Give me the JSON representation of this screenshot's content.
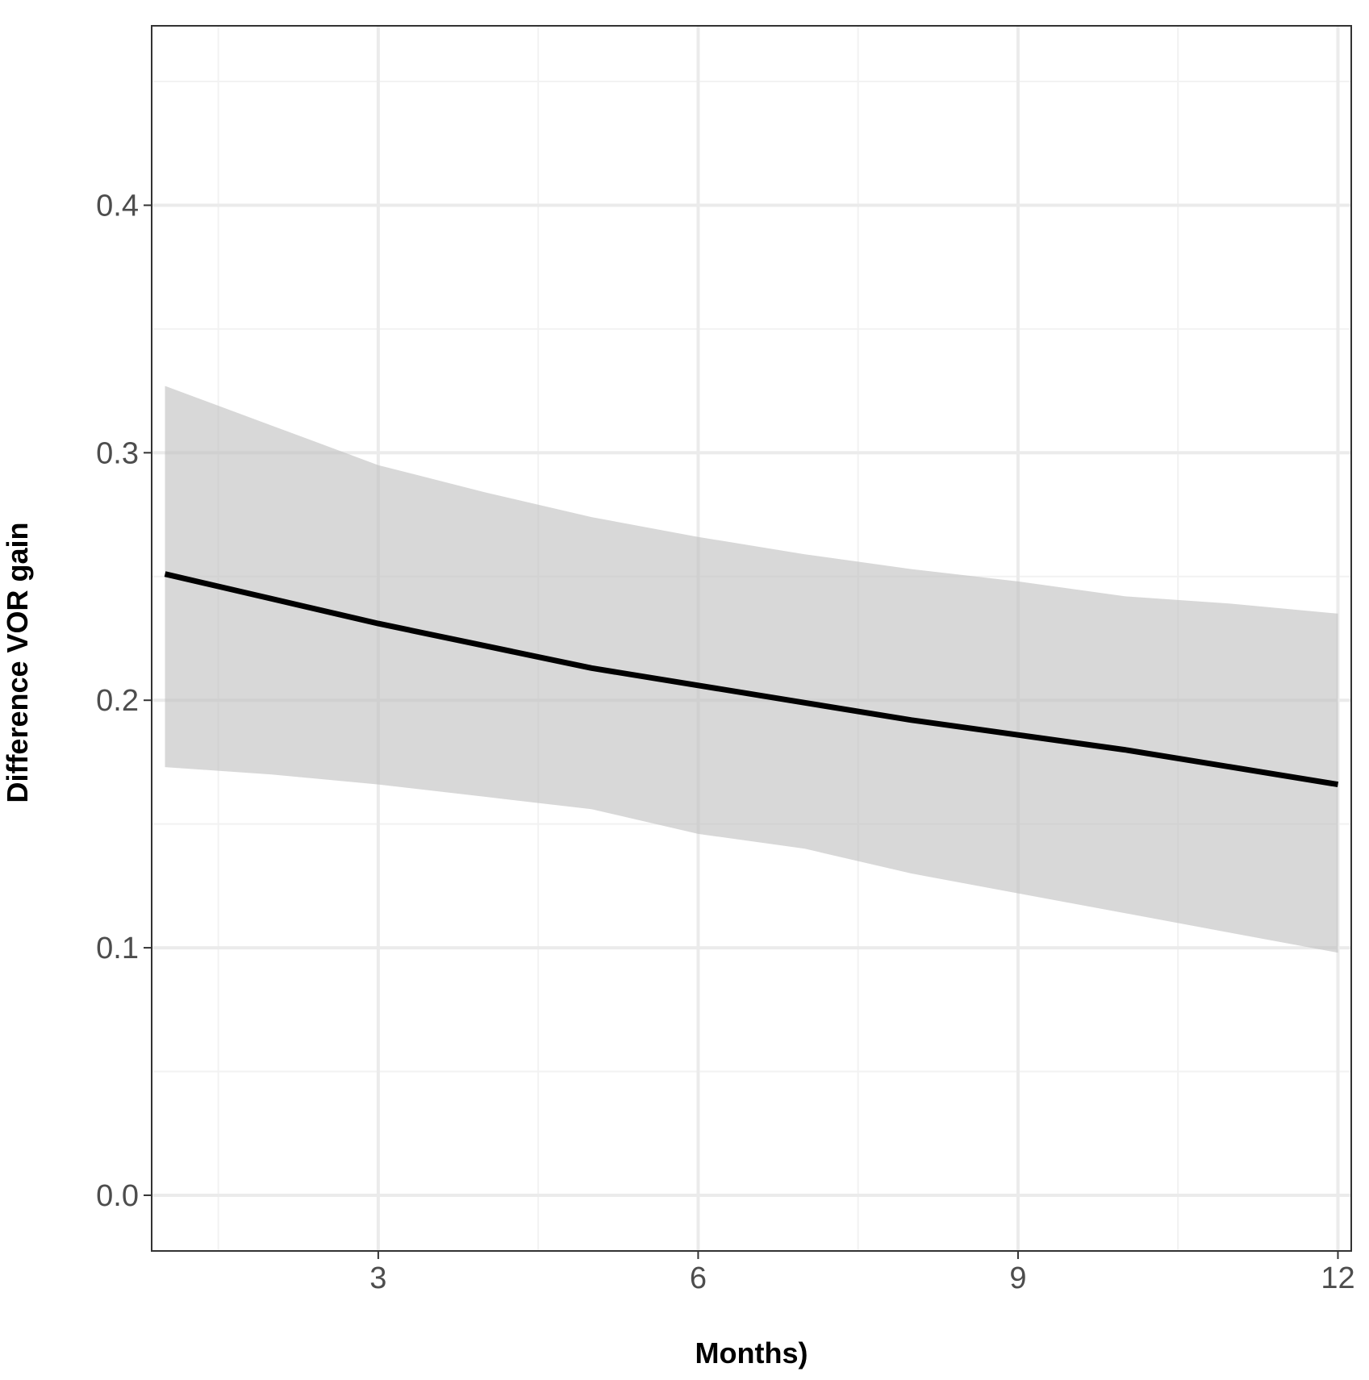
{
  "chart_data": {
    "type": "line",
    "title": "",
    "xlabel": "Months)",
    "ylabel": "Difference VOR gain",
    "xlim": [
      0.875,
      12.125
    ],
    "ylim": [
      -0.0225,
      0.4725
    ],
    "x_ticks": [
      3,
      6,
      9,
      12
    ],
    "x_tick_labels": [
      "3",
      "6",
      "9",
      "12"
    ],
    "y_ticks": [
      0.0,
      0.1,
      0.2,
      0.3,
      0.4
    ],
    "y_tick_labels": [
      "0.0",
      "0.1",
      "0.2",
      "0.3",
      "0.4"
    ],
    "x_minor_ticks": [
      1.5,
      4.5,
      7.5,
      10.5
    ],
    "y_minor_ticks": [
      0.05,
      0.15,
      0.25,
      0.35,
      0.45
    ],
    "grid": true,
    "series": [
      {
        "x": [
          1,
          2,
          3,
          4,
          5,
          6,
          7,
          8,
          9,
          10,
          11,
          12
        ],
        "values": [
          0.251,
          0.241,
          0.231,
          0.222,
          0.213,
          0.206,
          0.199,
          0.192,
          0.186,
          0.18,
          0.173,
          0.166
        ],
        "color": "#000000"
      }
    ],
    "ribbon": {
      "x": [
        1,
        2,
        3,
        4,
        5,
        6,
        7,
        8,
        9,
        10,
        11,
        12
      ],
      "lower": [
        0.173,
        0.17,
        0.166,
        0.161,
        0.156,
        0.146,
        0.14,
        0.13,
        0.122,
        0.114,
        0.106,
        0.098
      ],
      "upper": [
        0.327,
        0.311,
        0.295,
        0.284,
        0.274,
        0.266,
        0.259,
        0.253,
        0.248,
        0.242,
        0.239,
        0.235
      ],
      "color": "#bebebe"
    }
  }
}
